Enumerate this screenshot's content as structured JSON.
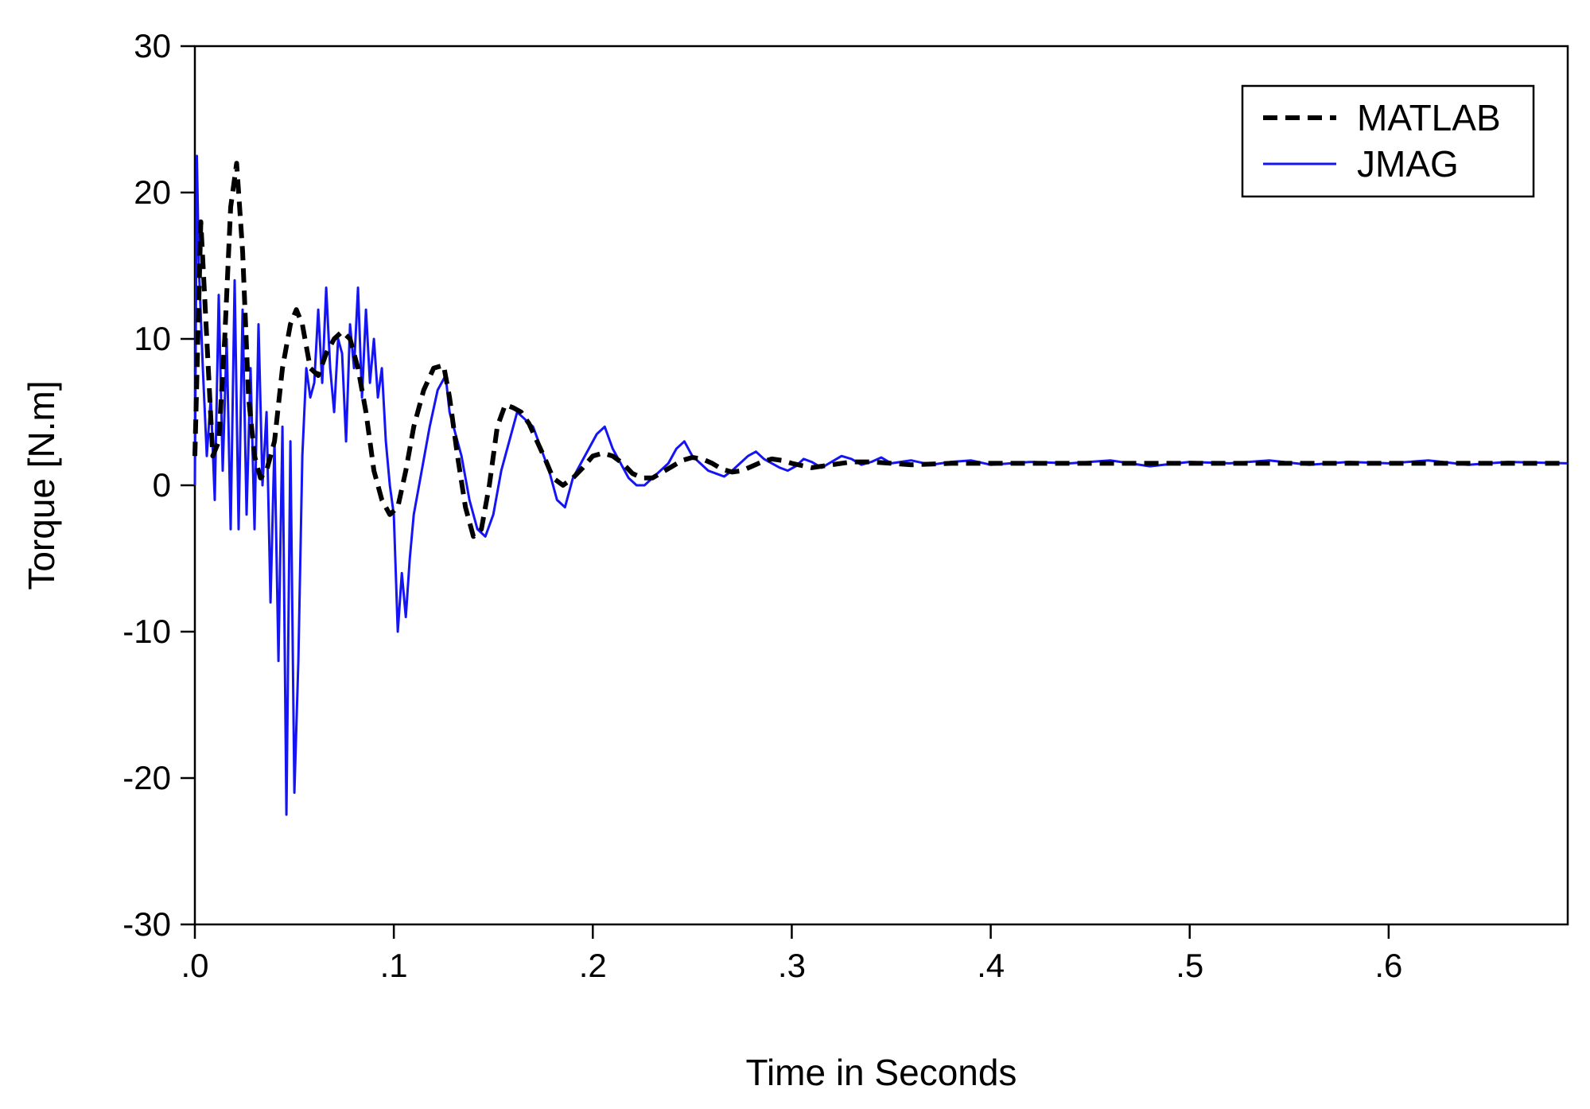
{
  "chart_data": {
    "type": "line",
    "title": "",
    "xlabel": "Time in Seconds",
    "ylabel": "Torque [N.m]",
    "xlim": [
      0,
      0.69
    ],
    "ylim": [
      -30,
      30
    ],
    "x_ticks": [
      0,
      0.1,
      0.2,
      0.3,
      0.4,
      0.5,
      0.6
    ],
    "x_tick_labels": [
      ".0",
      ".1",
      ".2",
      ".3",
      ".4",
      ".5",
      ".6"
    ],
    "y_ticks": [
      30,
      20,
      10,
      0,
      -10,
      -20,
      -30
    ],
    "y_tick_labels": [
      "30",
      "20",
      "10",
      "0",
      "-10",
      "-20",
      "-30"
    ],
    "grid": false,
    "legend_position": "top-right",
    "series": [
      {
        "name": "MATLAB",
        "color": "#000000",
        "style": "dashed",
        "x": [
          0,
          0.003,
          0.006,
          0.009,
          0.012,
          0.015,
          0.018,
          0.021,
          0.024,
          0.027,
          0.03,
          0.033,
          0.036,
          0.04,
          0.044,
          0.048,
          0.051,
          0.054,
          0.058,
          0.062,
          0.066,
          0.07,
          0.074,
          0.078,
          0.082,
          0.086,
          0.09,
          0.094,
          0.098,
          0.102,
          0.106,
          0.11,
          0.115,
          0.12,
          0.125,
          0.128,
          0.132,
          0.136,
          0.14,
          0.144,
          0.148,
          0.152,
          0.156,
          0.16,
          0.164,
          0.168,
          0.172,
          0.176,
          0.18,
          0.185,
          0.19,
          0.195,
          0.2,
          0.205,
          0.21,
          0.215,
          0.22,
          0.225,
          0.23,
          0.235,
          0.24,
          0.245,
          0.25,
          0.255,
          0.26,
          0.265,
          0.27,
          0.275,
          0.28,
          0.285,
          0.29,
          0.295,
          0.3,
          0.31,
          0.32,
          0.33,
          0.34,
          0.35,
          0.36,
          0.38,
          0.4,
          0.45,
          0.5,
          0.55,
          0.6,
          0.65,
          0.69
        ],
        "y": [
          2,
          18,
          10,
          2,
          3,
          10,
          19,
          22,
          16,
          6,
          2,
          0.5,
          1,
          3,
          8,
          11,
          12,
          11,
          8,
          7.5,
          9,
          10,
          10.5,
          10,
          8,
          5,
          1,
          -1,
          -2,
          -1.5,
          1,
          4,
          6.5,
          8,
          8.2,
          6,
          2,
          -1.5,
          -3.5,
          -3,
          0,
          4,
          5.5,
          5.3,
          5,
          4.2,
          3,
          1.8,
          0.5,
          0,
          0.5,
          1.2,
          2.0,
          2.2,
          2.0,
          1.5,
          0.8,
          0.5,
          0.5,
          0.9,
          1.3,
          1.7,
          1.9,
          1.8,
          1.5,
          1.1,
          0.9,
          1.0,
          1.3,
          1.6,
          1.8,
          1.7,
          1.5,
          1.2,
          1.4,
          1.6,
          1.6,
          1.5,
          1.4,
          1.5,
          1.5,
          1.5,
          1.5,
          1.5,
          1.5,
          1.5,
          1.5
        ]
      },
      {
        "name": "JMAG",
        "color": "#1414f5",
        "style": "solid",
        "x": [
          0,
          0.001,
          0.002,
          0.004,
          0.006,
          0.008,
          0.01,
          0.012,
          0.014,
          0.016,
          0.018,
          0.02,
          0.022,
          0.024,
          0.026,
          0.028,
          0.03,
          0.032,
          0.034,
          0.036,
          0.038,
          0.04,
          0.042,
          0.044,
          0.046,
          0.048,
          0.05,
          0.052,
          0.054,
          0.056,
          0.058,
          0.06,
          0.062,
          0.064,
          0.066,
          0.068,
          0.07,
          0.072,
          0.074,
          0.076,
          0.078,
          0.08,
          0.082,
          0.084,
          0.086,
          0.088,
          0.09,
          0.092,
          0.094,
          0.096,
          0.098,
          0.1,
          0.102,
          0.104,
          0.106,
          0.108,
          0.11,
          0.114,
          0.118,
          0.122,
          0.126,
          0.128,
          0.13,
          0.134,
          0.138,
          0.142,
          0.146,
          0.15,
          0.154,
          0.158,
          0.162,
          0.166,
          0.17,
          0.174,
          0.178,
          0.182,
          0.186,
          0.19,
          0.194,
          0.198,
          0.202,
          0.206,
          0.21,
          0.214,
          0.218,
          0.222,
          0.226,
          0.23,
          0.234,
          0.238,
          0.242,
          0.246,
          0.25,
          0.254,
          0.258,
          0.262,
          0.266,
          0.27,
          0.274,
          0.278,
          0.282,
          0.286,
          0.29,
          0.294,
          0.298,
          0.302,
          0.306,
          0.31,
          0.315,
          0.32,
          0.325,
          0.33,
          0.335,
          0.34,
          0.345,
          0.35,
          0.36,
          0.37,
          0.38,
          0.39,
          0.4,
          0.42,
          0.44,
          0.46,
          0.48,
          0.5,
          0.52,
          0.54,
          0.56,
          0.58,
          0.6,
          0.62,
          0.64,
          0.66,
          0.69
        ],
        "y": [
          0,
          22.5,
          15,
          8,
          2,
          6,
          -1,
          13,
          1,
          10,
          -3,
          14,
          -3,
          12,
          -2,
          8,
          -3,
          11,
          0,
          5,
          -8,
          3,
          -12,
          4,
          -22.5,
          3,
          -21,
          -12,
          2,
          8,
          6,
          7,
          12,
          7,
          13.5,
          8,
          5,
          10,
          9,
          3,
          11,
          8,
          13.5,
          6,
          12,
          7,
          10,
          6,
          8,
          3,
          0,
          -2,
          -10,
          -6,
          -9,
          -5,
          -2,
          1,
          4,
          6.5,
          7.5,
          5,
          4,
          2,
          -1,
          -3,
          -3.5,
          -2,
          1,
          3,
          5,
          4.5,
          4,
          2.5,
          1,
          -1,
          -1.5,
          0.5,
          1.5,
          2.5,
          3.5,
          4,
          2.5,
          1.5,
          0.5,
          0,
          0,
          0.5,
          1,
          1.5,
          2.5,
          3,
          2,
          1.5,
          1,
          0.8,
          0.6,
          1,
          1.5,
          2,
          2.3,
          1.8,
          1.5,
          1.2,
          1,
          1.3,
          1.8,
          1.6,
          1.2,
          1.6,
          2,
          1.8,
          1.4,
          1.6,
          1.9,
          1.5,
          1.7,
          1.4,
          1.6,
          1.7,
          1.4,
          1.6,
          1.5,
          1.7,
          1.3,
          1.6,
          1.5,
          1.7,
          1.4,
          1.6,
          1.5,
          1.7,
          1.4,
          1.6,
          1.5
        ]
      }
    ]
  }
}
